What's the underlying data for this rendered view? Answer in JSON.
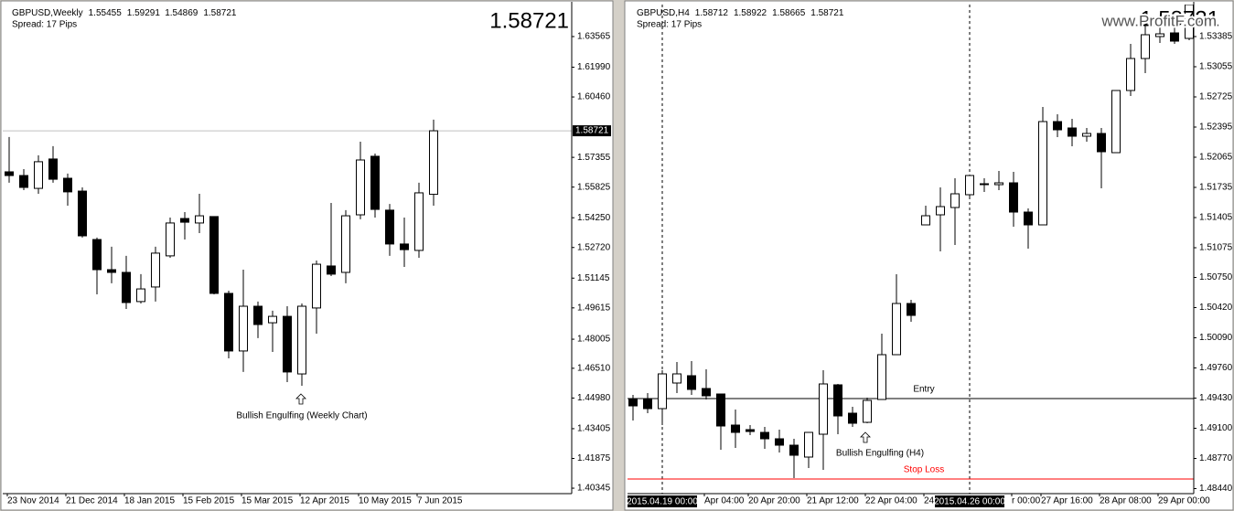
{
  "chart_data": [
    {
      "type": "candlestick",
      "title": "GBPUSD,Weekly",
      "ohlc": [
        1.55455,
        1.59291,
        1.54869,
        1.58721
      ],
      "subtitle": "Spread: 17 Pips",
      "categories": [
        "23 Nov 2014",
        null,
        null,
        null,
        "21 Dec 2014",
        null,
        null,
        null,
        "18 Jan 2015",
        null,
        null,
        null,
        "15 Feb 2015",
        null,
        null,
        null,
        "15 Mar 2015",
        null,
        null,
        null,
        "12 Apr 2015",
        null,
        null,
        null,
        "10 May 2015",
        null,
        null,
        null,
        "7 Jun 2015",
        null
      ],
      "open": [
        1.5661,
        1.5642,
        1.5576,
        1.5727,
        1.5628,
        1.5562,
        1.5313,
        1.5158,
        1.5144,
        1.4994,
        1.5069,
        1.5229,
        1.5421,
        1.5398,
        1.5431,
        1.5036,
        1.474,
        1.497,
        1.4885,
        1.4918,
        1.4622,
        1.4961,
        1.5177,
        1.5144,
        1.544,
        1.5741,
        1.5464,
        1.529,
        1.5257,
        1.55455
      ],
      "high": [
        1.584,
        1.5675,
        1.5746,
        1.5793,
        1.5652,
        1.5581,
        1.5323,
        1.5276,
        1.5229,
        1.5135,
        1.5276,
        1.5426,
        1.5454,
        1.5548,
        1.5431,
        1.505,
        1.5158,
        1.4994,
        1.4947,
        1.497,
        1.4984,
        1.5205,
        1.5501,
        1.5464,
        1.5816,
        1.5755,
        1.5496,
        1.5426,
        1.5605,
        1.59291
      ],
      "low": [
        1.5605,
        1.5567,
        1.5548,
        1.5605,
        1.5487,
        1.5323,
        1.5031,
        1.5088,
        1.4956,
        1.4984,
        1.4994,
        1.5219,
        1.5313,
        1.5346,
        1.5031,
        1.4702,
        1.4632,
        1.4806,
        1.4735,
        1.458,
        1.4561,
        1.4829,
        1.5125,
        1.5088,
        1.5417,
        1.5426,
        1.5229,
        1.5172,
        1.5219,
        1.54869
      ],
      "close": [
        1.5642,
        1.5581,
        1.5713,
        1.5623,
        1.5558,
        1.5332,
        1.5158,
        1.5144,
        1.4989,
        1.5059,
        1.5243,
        1.5398,
        1.5402,
        1.5435,
        1.5036,
        1.474,
        1.497,
        1.4876,
        1.4918,
        1.4632,
        1.497,
        1.5186,
        1.5135,
        1.5435,
        1.5722,
        1.5468,
        1.529,
        1.5261,
        1.5553,
        1.58721
      ],
      "up_color": "#ffffff",
      "down_color": "#000000",
      "ylim": [
        1.40065,
        1.6521
      ],
      "yticks": [
        1.63565,
        {
          "value": 1.6199,
          "label": "1.61990"
        },
        {
          "value": 1.6046,
          "label": "1.60460"
        },
        1.57355,
        1.55825,
        {
          "value": 1.5425,
          "label": "1.54250"
        },
        {
          "value": 1.5272,
          "label": "1.52720"
        },
        1.51145,
        1.49615,
        1.48005,
        {
          "value": 1.4651,
          "label": "1.46510"
        },
        {
          "value": 1.4498,
          "label": "1.44980"
        },
        1.43405,
        1.41875,
        1.40345
      ],
      "current_price_line": true,
      "annotations": [
        "Bullish Engulfing (Weekly Chart)"
      ]
    },
    {
      "type": "candlestick",
      "title": "GBPUSD,H4",
      "ohlc": [
        1.58712,
        1.58922,
        1.58665,
        1.58721
      ],
      "subtitle": "Spread: 17 Pips",
      "categories": [
        null,
        null,
        "2015.04.19 00:00",
        null,
        null,
        "Apr 04:00",
        null,
        null,
        "20 Apr 20:00",
        null,
        null,
        null,
        "21 Apr 12:00",
        null,
        null,
        null,
        "22 Apr 04:00",
        null,
        null,
        null,
        "24",
        null,
        null,
        "2015.04.26 00:00",
        null,
        null,
        "r 00:00",
        null,
        "27 Apr 16:00",
        null,
        null,
        null,
        "28 Apr 08:00",
        null,
        null,
        null,
        "29 Apr 00:00",
        null,
        null
      ],
      "open": [
        1.49425,
        1.49425,
        1.49315,
        1.49595,
        1.49675,
        1.49535,
        1.49475,
        1.49135,
        1.49085,
        1.49055,
        1.48985,
        1.48915,
        1.48785,
        1.49035,
        1.49575,
        1.49265,
        1.49165,
        1.49415,
        1.49905,
        1.50465,
        1.51325,
        1.51435,
        1.51515,
        1.51655,
        1.51765,
        1.51765,
        1.51785,
        1.51465,
        1.51325,
        1.52455,
        1.52385,
        1.52295,
        1.52325,
        1.52115,
        1.52795,
        1.53145,
        1.53385,
        1.53425,
        1.53365
      ],
      "high": [
        1.49465,
        1.49485,
        1.49735,
        1.49825,
        1.49835,
        1.49745,
        1.49475,
        1.49305,
        1.49135,
        1.49115,
        1.49085,
        1.48985,
        1.49055,
        1.49735,
        1.49585,
        1.49335,
        1.49435,
        1.50135,
        1.50785,
        1.50505,
        1.51535,
        1.51735,
        1.51835,
        1.51865,
        1.51835,
        1.51915,
        1.51905,
        1.51505,
        1.52615,
        1.52535,
        1.52485,
        1.52385,
        1.52385,
        1.52795,
        1.53305,
        1.53565,
        1.53505,
        1.53485,
        1.53735
      ],
      "low": [
        1.49185,
        1.49265,
        1.49135,
        1.49485,
        1.49465,
        1.49415,
        1.48865,
        1.48885,
        1.49025,
        1.48875,
        1.48835,
        1.48555,
        1.48665,
        1.48645,
        1.49035,
        1.49115,
        1.49155,
        1.49415,
        1.49905,
        1.50265,
        1.51325,
        1.51035,
        1.51105,
        1.51635,
        1.51685,
        1.51705,
        1.51305,
        1.51065,
        1.51325,
        1.52285,
        1.52185,
        1.52235,
        1.51725,
        1.52115,
        1.52735,
        1.52985,
        1.53315,
        1.53305,
        1.53345
      ],
      "close": [
        1.49345,
        1.49315,
        1.49695,
        1.49695,
        1.49525,
        1.49455,
        1.49125,
        1.49055,
        1.49065,
        1.48985,
        1.48915,
        1.48805,
        1.49055,
        1.49585,
        1.49235,
        1.49155,
        1.49405,
        1.49905,
        1.50465,
        1.50335,
        1.51425,
        1.51525,
        1.51665,
        1.51865,
        1.51775,
        1.51785,
        1.51465,
        1.51325,
        1.52455,
        1.52365,
        1.52295,
        1.52325,
        1.52125,
        1.52795,
        1.53145,
        1.53405,
        1.53415,
        1.53335,
        1.53735
      ],
      "up_color": "#ffffff",
      "down_color": "#000000",
      "ylim": [
        1.48385,
        1.53735
      ],
      "yticks": [
        1.53385,
        1.53055,
        1.52725,
        1.52395,
        1.52065,
        1.51735,
        1.51405,
        1.51075,
        {
          "value": 1.5075,
          "label": "1.50750"
        },
        {
          "value": 1.5042,
          "label": "1.50420"
        },
        {
          "value": 1.5009,
          "label": "1.50090"
        },
        {
          "value": 1.4976,
          "label": "1.49760"
        },
        {
          "value": 1.4943,
          "label": "1.49430"
        },
        {
          "value": 1.491,
          "label": "1.49100"
        },
        {
          "value": 1.4877,
          "label": "1.48770"
        },
        {
          "value": 1.4844,
          "label": "1.48440"
        }
      ],
      "period_separators": true,
      "hlines": [
        {
          "label": "Entry",
          "value": 1.49425,
          "color": "#000000"
        },
        {
          "label": "Stop Loss",
          "value": 1.48545,
          "color": "#ff0000"
        }
      ],
      "annotations": [
        "Bullish Engulfing (H4)"
      ],
      "watermark": "www.ProfitF.com"
    }
  ]
}
